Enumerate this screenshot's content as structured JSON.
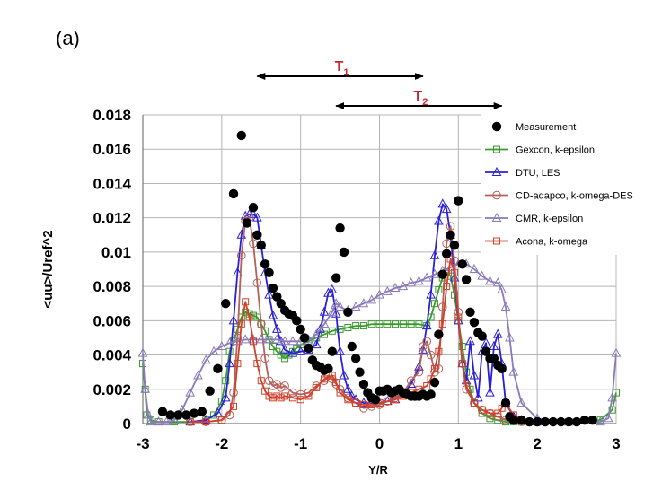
{
  "panel_label": "(a)",
  "annotations": {
    "t1": {
      "main": "T",
      "sub": "1",
      "x_from": -1.55,
      "x_to": 0.55
    },
    "t2": {
      "main": "T",
      "sub": "2",
      "x_from": -0.55,
      "x_to": 1.55
    }
  },
  "chart_data": {
    "type": "line",
    "xlabel": "Y/R",
    "ylabel": "<uu>/Uref^2",
    "xlim": [
      -3,
      3
    ],
    "ylim": [
      0,
      0.018
    ],
    "xticks": [
      "-3",
      "-2",
      "-1",
      "0",
      "1",
      "2",
      "3"
    ],
    "yticks": [
      "0",
      "0.002",
      "0.004",
      "0.006",
      "0.008",
      "0.01",
      "0.012",
      "0.014",
      "0.016",
      "0.018"
    ],
    "grid": true,
    "legend_position": "top-right",
    "series": [
      {
        "name": "Measurement",
        "color": "#000000",
        "marker": "dot",
        "line": false,
        "x": [
          -2.75,
          -2.65,
          -2.55,
          -2.45,
          -2.35,
          -2.25,
          -2.15,
          -2.05,
          -1.95,
          -1.85,
          -1.75,
          -1.68,
          -1.6,
          -1.55,
          -1.5,
          -1.45,
          -1.4,
          -1.35,
          -1.3,
          -1.25,
          -1.2,
          -1.15,
          -1.1,
          -1.05,
          -1.0,
          -0.95,
          -0.9,
          -0.85,
          -0.8,
          -0.75,
          -0.7,
          -0.65,
          -0.6,
          -0.55,
          -0.5,
          -0.45,
          -0.4,
          -0.35,
          -0.3,
          -0.25,
          -0.2,
          -0.15,
          -0.1,
          -0.05,
          0.0,
          0.05,
          0.1,
          0.15,
          0.2,
          0.25,
          0.3,
          0.35,
          0.4,
          0.45,
          0.5,
          0.55,
          0.6,
          0.65,
          0.7,
          0.75,
          0.8,
          0.85,
          0.9,
          0.95,
          1.0,
          1.05,
          1.1,
          1.15,
          1.2,
          1.25,
          1.3,
          1.35,
          1.4,
          1.45,
          1.5,
          1.55,
          1.6,
          1.65,
          1.7,
          1.8,
          1.9,
          2.0,
          2.1,
          2.2,
          2.3,
          2.4,
          2.5,
          2.6,
          2.7
        ],
        "y": [
          0.0007,
          0.0005,
          0.0005,
          0.0005,
          0.0006,
          0.0007,
          0.0019,
          0.0032,
          0.007,
          0.0134,
          0.0168,
          0.0117,
          0.0126,
          0.011,
          0.0104,
          0.0093,
          0.0088,
          0.0079,
          0.0074,
          0.007,
          0.0066,
          0.0064,
          0.0063,
          0.006,
          0.0055,
          0.005,
          0.0044,
          0.0037,
          0.0034,
          0.0033,
          0.0031,
          0.0032,
          0.0042,
          0.0085,
          0.0114,
          0.01,
          0.0065,
          0.0045,
          0.0038,
          0.003,
          0.0023,
          0.0018,
          0.0015,
          0.0014,
          0.0019,
          0.0019,
          0.002,
          0.0018,
          0.0019,
          0.002,
          0.0018,
          0.0017,
          0.0016,
          0.0016,
          0.0016,
          0.0017,
          0.0016,
          0.0017,
          0.0024,
          0.0052,
          0.0087,
          0.0099,
          0.011,
          0.0104,
          0.013,
          0.0093,
          0.0084,
          0.0065,
          0.0059,
          0.0053,
          0.0051,
          0.0042,
          0.0038,
          0.0038,
          0.0034,
          0.0032,
          0.0012,
          0.0004,
          0.0002,
          0.0002,
          0.0001,
          0.0001,
          0.0001,
          0.0001,
          0.0001,
          0.0001,
          0.0001,
          0.0002,
          0.0002
        ]
      },
      {
        "name": "Gexcon, k-epsilon",
        "color": "#3a9a2c",
        "marker": "square",
        "x": [
          -3.0,
          -2.97,
          -2.95,
          -2.9,
          -2.8,
          -2.6,
          -2.4,
          -2.2,
          -2.1,
          -2.0,
          -1.95,
          -1.9,
          -1.85,
          -1.8,
          -1.75,
          -1.7,
          -1.65,
          -1.6,
          -1.55,
          -1.5,
          -1.45,
          -1.4,
          -1.35,
          -1.3,
          -1.25,
          -1.2,
          -1.15,
          -1.1,
          -1.05,
          -1.0,
          -0.9,
          -0.8,
          -0.7,
          -0.6,
          -0.5,
          -0.4,
          -0.3,
          -0.2,
          -0.1,
          0.0,
          0.1,
          0.2,
          0.3,
          0.4,
          0.5,
          0.6,
          0.65,
          0.7,
          0.75,
          0.8,
          0.85,
          0.9,
          0.95,
          1.0,
          1.05,
          1.1,
          1.15,
          1.2,
          1.3,
          1.4,
          1.5,
          1.6,
          1.7,
          1.8,
          2.0,
          2.4,
          2.8,
          2.95,
          3.0
        ],
        "y": [
          0.0035,
          0.002,
          0.0005,
          0.0002,
          0.0001,
          0.0001,
          0.0001,
          0.0002,
          0.0005,
          0.0013,
          0.0025,
          0.0042,
          0.0048,
          0.0055,
          0.0062,
          0.0065,
          0.0064,
          0.0063,
          0.0062,
          0.0058,
          0.0054,
          0.0049,
          0.0045,
          0.0042,
          0.004,
          0.0038,
          0.004,
          0.0042,
          0.0044,
          0.0046,
          0.0048,
          0.005,
          0.0052,
          0.0054,
          0.0055,
          0.0056,
          0.0057,
          0.0057,
          0.0058,
          0.0058,
          0.0058,
          0.0058,
          0.0058,
          0.0058,
          0.0058,
          0.0057,
          0.0062,
          0.007,
          0.0078,
          0.0085,
          0.0088,
          0.0086,
          0.0075,
          0.006,
          0.0045,
          0.003,
          0.002,
          0.0012,
          0.0006,
          0.0003,
          0.0002,
          0.0001,
          0.0001,
          0.0001,
          0.0001,
          0.0001,
          0.0002,
          0.0008,
          0.0018
        ]
      },
      {
        "name": "DTU, LES",
        "color": "#2a1fd6",
        "marker": "triangle",
        "x": [
          -2.4,
          -2.2,
          -2.05,
          -1.95,
          -1.9,
          -1.85,
          -1.8,
          -1.75,
          -1.7,
          -1.65,
          -1.6,
          -1.55,
          -1.5,
          -1.45,
          -1.4,
          -1.35,
          -1.3,
          -1.25,
          -1.2,
          -1.1,
          -1.0,
          -0.9,
          -0.8,
          -0.75,
          -0.7,
          -0.65,
          -0.6,
          -0.55,
          -0.5,
          -0.45,
          -0.4,
          -0.35,
          -0.3,
          -0.2,
          -0.1,
          0.0,
          0.1,
          0.2,
          0.3,
          0.4,
          0.5,
          0.55,
          0.6,
          0.65,
          0.7,
          0.75,
          0.8,
          0.85,
          0.9,
          0.95,
          1.0,
          1.05,
          1.1,
          1.15,
          1.2,
          1.25,
          1.3,
          1.35,
          1.4,
          1.45,
          1.5,
          1.55,
          1.6,
          1.7,
          1.8,
          2.0,
          2.4
        ],
        "y": [
          0.0001,
          0.0002,
          0.0006,
          0.0015,
          0.0035,
          0.006,
          0.0088,
          0.011,
          0.0121,
          0.0122,
          0.0122,
          0.012,
          0.0104,
          0.0088,
          0.0075,
          0.0063,
          0.0055,
          0.0048,
          0.0043,
          0.0041,
          0.0042,
          0.0043,
          0.0046,
          0.0055,
          0.0065,
          0.0076,
          0.0078,
          0.0064,
          0.0042,
          0.0028,
          0.002,
          0.0016,
          0.0014,
          0.0012,
          0.0012,
          0.0012,
          0.0013,
          0.0014,
          0.0017,
          0.0023,
          0.0033,
          0.0043,
          0.0057,
          0.0075,
          0.0098,
          0.0118,
          0.0128,
          0.0125,
          0.011,
          0.0085,
          0.006,
          0.0035,
          0.0025,
          0.0048,
          0.0028,
          0.0015,
          0.0042,
          0.0047,
          0.0018,
          0.0045,
          0.0052,
          0.0035,
          0.0012,
          0.0004,
          0.0002,
          0.0001,
          0.0001
        ]
      },
      {
        "name": "CD-adapco, k-omega-DES",
        "color": "#b5605a",
        "marker": "circle",
        "x": [
          -2.4,
          -2.2,
          -2.0,
          -1.9,
          -1.85,
          -1.8,
          -1.75,
          -1.7,
          -1.65,
          -1.6,
          -1.55,
          -1.5,
          -1.45,
          -1.4,
          -1.35,
          -1.3,
          -1.25,
          -1.2,
          -1.1,
          -1.0,
          -0.9,
          -0.8,
          -0.7,
          -0.65,
          -0.6,
          -0.55,
          -0.5,
          -0.4,
          -0.3,
          -0.2,
          -0.1,
          0.0,
          0.1,
          0.2,
          0.3,
          0.4,
          0.5,
          0.55,
          0.6,
          0.65,
          0.7,
          0.75,
          0.8,
          0.85,
          0.9,
          0.95,
          1.0,
          1.05,
          1.1,
          1.2,
          1.3,
          1.4,
          1.5,
          1.6,
          1.8,
          2.0,
          2.4
        ],
        "y": [
          0.0001,
          0.0001,
          0.0002,
          0.0005,
          0.0018,
          0.005,
          0.0098,
          0.0118,
          0.012,
          0.0105,
          0.0082,
          0.0058,
          0.0038,
          0.0025,
          0.0022,
          0.0023,
          0.0021,
          0.0022,
          0.0018,
          0.0017,
          0.0018,
          0.0022,
          0.0025,
          0.0028,
          0.0026,
          0.0023,
          0.002,
          0.0015,
          0.0012,
          0.0009,
          0.001,
          0.0011,
          0.0013,
          0.0015,
          0.0018,
          0.0025,
          0.003,
          0.0045,
          0.0048,
          0.004,
          0.003,
          0.0032,
          0.0068,
          0.0105,
          0.0115,
          0.0095,
          0.0065,
          0.0035,
          0.002,
          0.0012,
          0.0008,
          0.0006,
          0.0004,
          0.0002,
          0.0001,
          0.0001,
          0.0001
        ]
      },
      {
        "name": "CMR, k-epsilon",
        "color": "#8a7ab8",
        "marker": "triangle",
        "x": [
          -3.0,
          -2.97,
          -2.93,
          -2.9,
          -2.8,
          -2.7,
          -2.6,
          -2.5,
          -2.4,
          -2.3,
          -2.2,
          -2.1,
          -2.0,
          -1.9,
          -1.8,
          -1.7,
          -1.6,
          -1.5,
          -1.4,
          -1.3,
          -1.2,
          -1.1,
          -1.0,
          -0.9,
          -0.8,
          -0.7,
          -0.6,
          -0.55,
          -0.5,
          -0.4,
          -0.3,
          -0.2,
          -0.1,
          0.0,
          0.1,
          0.2,
          0.3,
          0.4,
          0.5,
          0.6,
          0.7,
          0.8,
          0.9,
          1.0,
          1.1,
          1.2,
          1.3,
          1.4,
          1.5,
          1.55,
          1.6,
          1.65,
          1.7,
          1.8,
          2.0,
          2.4,
          2.8,
          2.9,
          2.95,
          3.0
        ],
        "y": [
          0.0041,
          0.002,
          0.0005,
          0.0001,
          0.0001,
          0.0001,
          0.0002,
          0.0008,
          0.0018,
          0.0028,
          0.0037,
          0.0042,
          0.0045,
          0.0047,
          0.0048,
          0.0049,
          0.0049,
          0.0049,
          0.0049,
          0.0049,
          0.0048,
          0.0048,
          0.0048,
          0.0049,
          0.0052,
          0.0058,
          0.0065,
          0.007,
          0.0068,
          0.0066,
          0.0068,
          0.007,
          0.0072,
          0.0075,
          0.0077,
          0.0079,
          0.008,
          0.0082,
          0.0083,
          0.0085,
          0.0087,
          0.0089,
          0.0091,
          0.0093,
          0.0093,
          0.009,
          0.0086,
          0.0083,
          0.0082,
          0.0078,
          0.0068,
          0.005,
          0.003,
          0.0012,
          0.0003,
          0.0001,
          0.0001,
          0.0003,
          0.0015,
          0.0041
        ]
      },
      {
        "name": "Acona, k-omega",
        "color": "#d0402a",
        "marker": "square",
        "x": [
          -2.4,
          -2.2,
          -2.0,
          -1.85,
          -1.8,
          -1.75,
          -1.7,
          -1.65,
          -1.6,
          -1.55,
          -1.5,
          -1.45,
          -1.4,
          -1.35,
          -1.3,
          -1.25,
          -1.2,
          -1.1,
          -1.0,
          -0.9,
          -0.8,
          -0.7,
          -0.6,
          -0.55,
          -0.5,
          -0.4,
          -0.3,
          -0.2,
          -0.1,
          0.0,
          0.1,
          0.2,
          0.3,
          0.4,
          0.5,
          0.6,
          0.65,
          0.7,
          0.75,
          0.8,
          0.85,
          0.9,
          0.95,
          1.0,
          1.05,
          1.1,
          1.2,
          1.3,
          1.4,
          1.5,
          1.55,
          1.6,
          1.7,
          1.8,
          2.0,
          2.4
        ],
        "y": [
          0.0001,
          0.0001,
          0.0002,
          0.001,
          0.0035,
          0.0058,
          0.0071,
          0.0062,
          0.0048,
          0.0035,
          0.0025,
          0.0019,
          0.0016,
          0.0015,
          0.0016,
          0.0015,
          0.0016,
          0.0015,
          0.0014,
          0.0016,
          0.0021,
          0.0026,
          0.0028,
          0.0024,
          0.0018,
          0.0014,
          0.0012,
          0.0011,
          0.0011,
          0.0012,
          0.0013,
          0.0014,
          0.0016,
          0.0018,
          0.002,
          0.0022,
          0.0026,
          0.0032,
          0.0042,
          0.0058,
          0.008,
          0.0096,
          0.0088,
          0.0062,
          0.0035,
          0.0022,
          0.0012,
          0.0008,
          0.0006,
          0.0006,
          0.0009,
          0.0012,
          0.0005,
          0.0002,
          0.0001,
          0.0001
        ]
      }
    ]
  }
}
